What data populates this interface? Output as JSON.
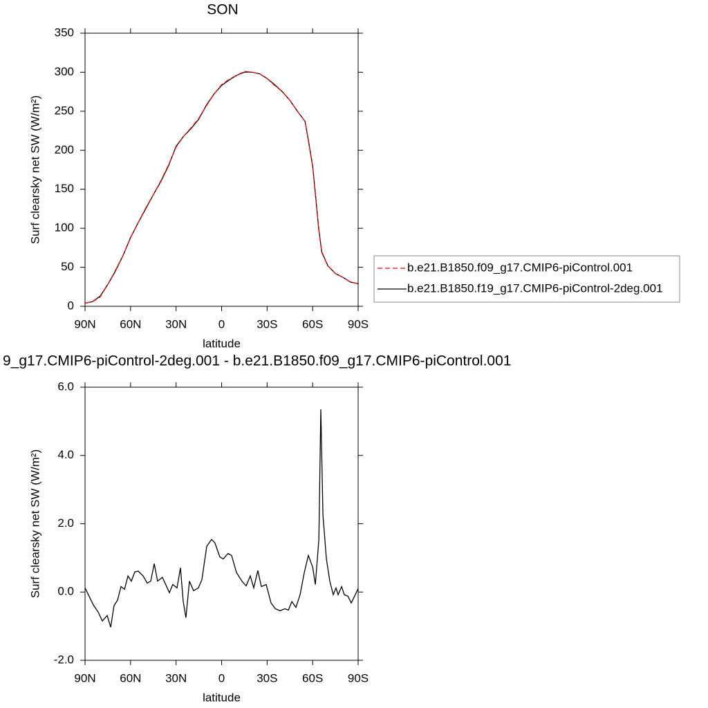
{
  "chart_data": [
    {
      "type": "line",
      "title": "SON",
      "ylabel": "Surf clearsky net SW (W/m²)",
      "xlabel": "latitude",
      "x": [
        90,
        85,
        80,
        75,
        70,
        65,
        60,
        55,
        50,
        45,
        40,
        35,
        30,
        25,
        20,
        15,
        10,
        5,
        0,
        -5,
        -10,
        -15,
        -20,
        -25,
        -30,
        -35,
        -40,
        -45,
        -50,
        -55,
        -57,
        -60,
        -62,
        -64,
        -66,
        -70,
        -75,
        -80,
        -85,
        -90
      ],
      "series": [
        {
          "name": "b.e21.B1850.f09_g17.CMIP6-piControl.001",
          "color": "#ff0000",
          "line_style": "dashed",
          "values": [
            4,
            6,
            12,
            28,
            46,
            65,
            88,
            107,
            126,
            143,
            161,
            181,
            204,
            218,
            229,
            241,
            257,
            272,
            284,
            291,
            296,
            301,
            300,
            298,
            292,
            283,
            275,
            264,
            250,
            237,
            214,
            179,
            139,
            99,
            69,
            52,
            42,
            37,
            31,
            29
          ]
        },
        {
          "name": "b.e21.B1850.f19_g17.CMIP6-piControl-2deg.001",
          "color": "#000000",
          "line_style": "solid",
          "values": [
            4,
            6,
            13,
            28,
            45,
            65,
            88,
            107,
            125,
            143,
            160,
            180,
            205,
            218,
            228,
            240,
            258,
            272,
            283,
            290,
            296,
            300,
            300,
            298,
            292,
            284,
            275,
            264,
            250,
            237,
            215,
            180,
            140,
            100,
            70,
            52,
            42,
            37,
            31,
            29
          ]
        }
      ],
      "xlim": [
        90,
        -90
      ],
      "xticks": [
        {
          "value": 90,
          "label": "90N"
        },
        {
          "value": 60,
          "label": "60N"
        },
        {
          "value": 30,
          "label": "30N"
        },
        0,
        {
          "value": -30,
          "label": "30S"
        },
        {
          "value": -60,
          "label": "60S"
        },
        {
          "value": -90,
          "label": "90S"
        }
      ],
      "ylim": [
        0,
        350
      ],
      "yticks": [
        0,
        50,
        100,
        150,
        200,
        250,
        300,
        350
      ],
      "legend": "right"
    },
    {
      "type": "line",
      "title": "9_g17.CMIP6-piControl-2deg.001 - b.e21.B1850.f09_g17.CMIP6-piControl.001",
      "ylabel": "Surf clearsky net SW (W/m²)",
      "xlabel": "latitude",
      "x": [
        90,
        84.5,
        81.3,
        78.6,
        75.4,
        73.1,
        70.9,
        68.6,
        66.3,
        64.0,
        61.7,
        59.5,
        57.2,
        54.9,
        51.7,
        49.0,
        46.7,
        44.4,
        42.2,
        39.0,
        34.4,
        32.2,
        29.4,
        27.1,
        25.3,
        23.5,
        21.2,
        18.5,
        15.3,
        13.0,
        9.8,
        6.6,
        4.4,
        1.2,
        -1.1,
        -4.3,
        -6.6,
        -9.8,
        -13.4,
        -16.2,
        -18.9,
        -21.2,
        -23.9,
        -26.2,
        -29.4,
        -32.6,
        -35.4,
        -38.5,
        -41.7,
        -44.0,
        -46.3,
        -49.0,
        -51.7,
        -54.5,
        -57.2,
        -60.0,
        -61.8,
        -64.1,
        -65.4,
        -66.8,
        -69.1,
        -71.3,
        -73.6,
        -75.4,
        -76.8,
        -79.1,
        -80.9,
        -83.2,
        -85.5,
        -90
      ],
      "values": [
        0.12,
        -0.38,
        -0.59,
        -0.85,
        -0.69,
        -1.03,
        -0.4,
        -0.24,
        0.16,
        0.08,
        0.47,
        0.32,
        0.59,
        0.61,
        0.47,
        0.26,
        0.32,
        0.83,
        0.32,
        0.43,
        -0.02,
        0.22,
        0.12,
        0.71,
        -0.28,
        -0.75,
        0.32,
        0.04,
        0.12,
        0.36,
        1.34,
        1.54,
        1.44,
        1.03,
        0.97,
        1.13,
        1.07,
        0.57,
        0.32,
        0.18,
        0.47,
        0.12,
        0.63,
        0.16,
        0.22,
        -0.32,
        -0.49,
        -0.55,
        -0.49,
        -0.53,
        -0.28,
        -0.45,
        -0.08,
        0.57,
        1.07,
        0.73,
        0.22,
        1.54,
        5.35,
        2.25,
        0.97,
        0.32,
        -0.08,
        0.12,
        -0.08,
        0.16,
        -0.08,
        -0.12,
        -0.32,
        0.1
      ],
      "color": "#000000",
      "xlim": [
        90,
        -90
      ],
      "xticks": [
        {
          "value": 90,
          "label": "90N"
        },
        {
          "value": 60,
          "label": "60N"
        },
        {
          "value": 30,
          "label": "30N"
        },
        0,
        {
          "value": -30,
          "label": "30S"
        },
        {
          "value": -60,
          "label": "60S"
        },
        {
          "value": -90,
          "label": "90S"
        }
      ],
      "ylim": [
        -2,
        6
      ],
      "yticks": [
        {
          "value": -2,
          "label": "-2.0"
        },
        {
          "value": 0,
          "label": "0.0"
        },
        {
          "value": 2,
          "label": "2.0"
        },
        {
          "value": 4,
          "label": "4.0"
        },
        {
          "value": 6,
          "label": "6.0"
        }
      ]
    }
  ]
}
